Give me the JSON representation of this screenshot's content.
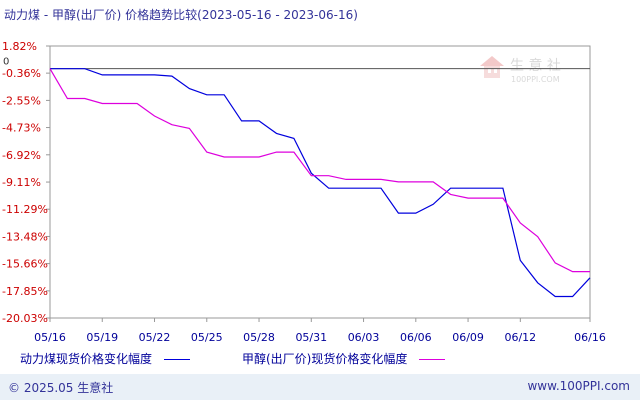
{
  "header": {
    "title": "动力煤 - 甲醇(出厂价) 价格趋势比较(2023-05-16 - 2023-06-16)"
  },
  "watermark": {
    "brand": "生 意 社",
    "url": "100PPI.COM"
  },
  "footer": {
    "copyright": "© 2025.05 生意社",
    "site": "www.100PPI.com"
  },
  "colors": {
    "series1": "#0000dd",
    "series2": "#dd00dd",
    "axis": "#999999",
    "tick_label": "#cc0000",
    "x_label": "#000099"
  },
  "chart_data": {
    "type": "line",
    "xlabel": "",
    "ylabel": "",
    "grid": false,
    "y_ticks": [
      "1.82%",
      "-0.36%",
      "-2.55%",
      "-4.73%",
      "-6.92%",
      "-9.11%",
      "-11.29%",
      "-13.48%",
      "-15.66%",
      "-17.85%",
      "-20.03%"
    ],
    "y_tick_values": [
      1.82,
      -0.36,
      -2.55,
      -4.73,
      -6.92,
      -9.11,
      -11.29,
      -13.48,
      -15.66,
      -17.85,
      -20.03
    ],
    "zero_label": "0",
    "ylim": [
      -20.03,
      1.82
    ],
    "x_tick_labels": [
      "05/16",
      "05/19",
      "05/22",
      "05/25",
      "05/28",
      "05/31",
      "06/03",
      "06/06",
      "06/09",
      "06/12",
      "06/16"
    ],
    "x_tick_indices": [
      0,
      3,
      6,
      9,
      12,
      15,
      18,
      21,
      24,
      27,
      31
    ],
    "categories": [
      "05/16",
      "05/17",
      "05/18",
      "05/19",
      "05/20",
      "05/21",
      "05/22",
      "05/23",
      "05/24",
      "05/25",
      "05/26",
      "05/27",
      "05/28",
      "05/29",
      "05/30",
      "05/31",
      "06/01",
      "06/02",
      "06/03",
      "06/04",
      "06/05",
      "06/06",
      "06/07",
      "06/08",
      "06/09",
      "06/10",
      "06/11",
      "06/12",
      "06/13",
      "06/14",
      "06/15",
      "06/16"
    ],
    "series": [
      {
        "name": "动力煤现货价格变化幅度",
        "values": [
          0.0,
          0.0,
          0.0,
          -0.5,
          -0.5,
          -0.5,
          -0.5,
          -0.6,
          -1.6,
          -2.1,
          -2.1,
          -4.2,
          -4.2,
          -5.2,
          -5.6,
          -8.4,
          -9.6,
          -9.6,
          -9.6,
          -9.6,
          -11.6,
          -11.6,
          -10.9,
          -9.6,
          -9.6,
          -9.6,
          -9.6,
          -15.4,
          -17.2,
          -18.3,
          -18.3,
          -16.8
        ]
      },
      {
        "name": "甲醇(出厂价)现货价格变化幅度",
        "values": [
          0.0,
          -2.4,
          -2.4,
          -2.8,
          -2.8,
          -2.8,
          -3.8,
          -4.5,
          -4.8,
          -6.7,
          -7.1,
          -7.1,
          -7.1,
          -6.7,
          -6.7,
          -8.6,
          -8.6,
          -8.9,
          -8.9,
          -8.9,
          -9.1,
          -9.1,
          -9.1,
          -10.1,
          -10.4,
          -10.4,
          -10.4,
          -12.4,
          -13.5,
          -15.6,
          -16.3,
          -16.3
        ]
      }
    ]
  }
}
